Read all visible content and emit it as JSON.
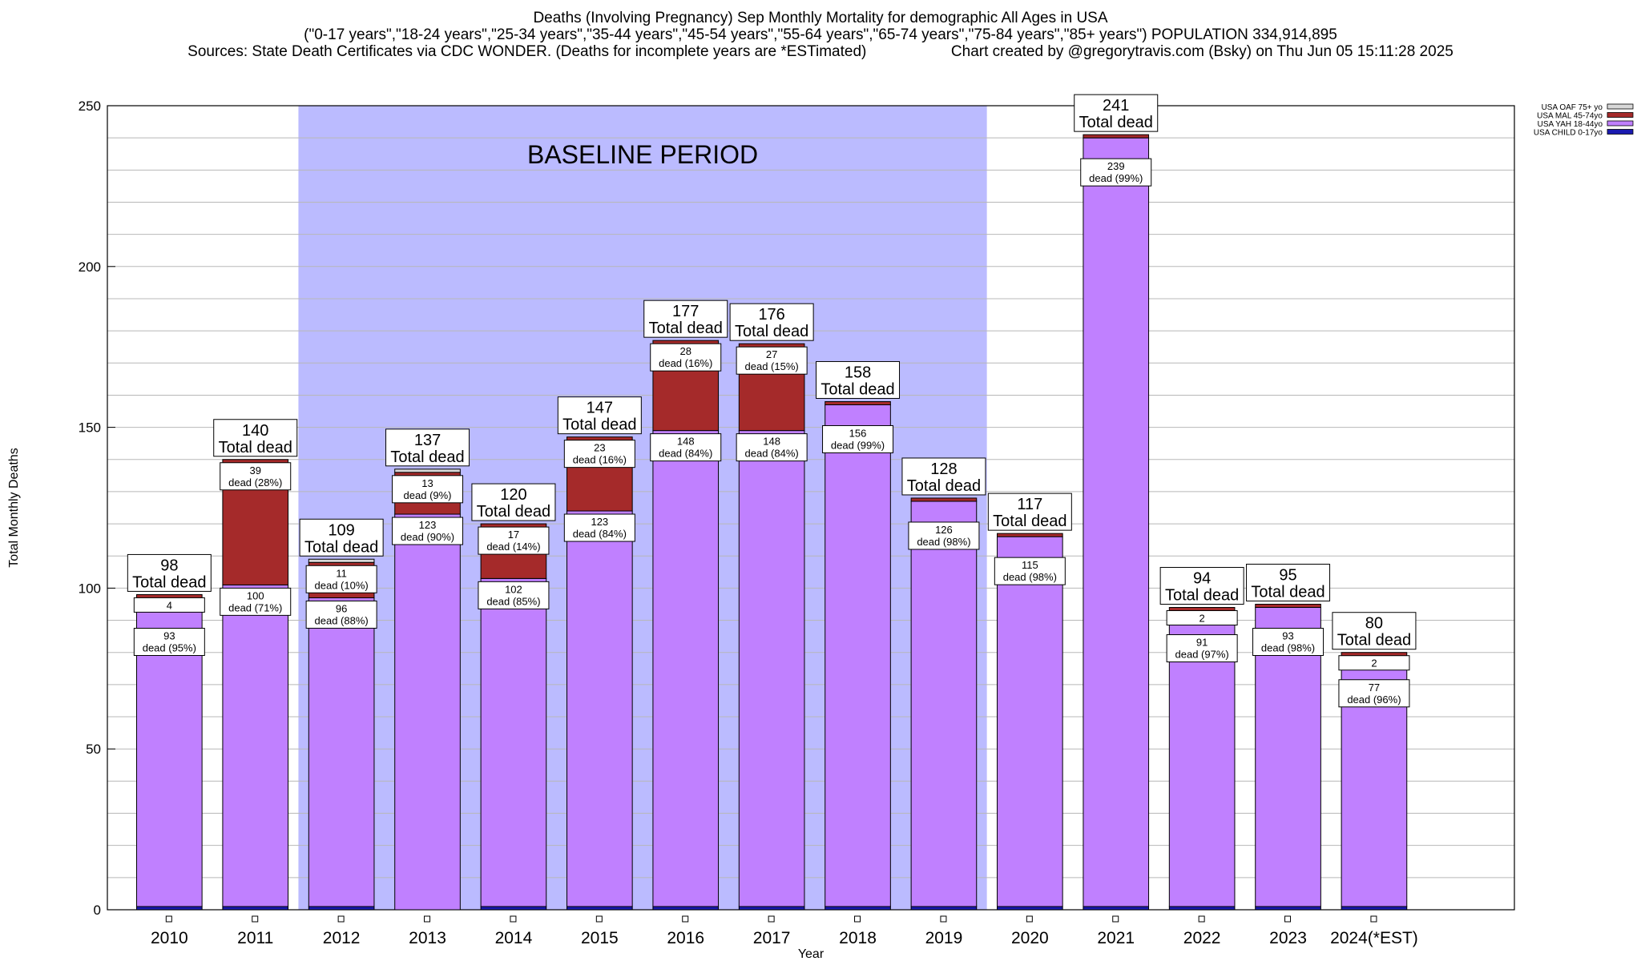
{
  "chart_data": {
    "type": "bar",
    "title": "Deaths (Involving Pregnancy) Sep Monthly Mortality for demographic All Ages in USA",
    "subtitle": "(\"0-17 years\",\"18-24 years\",\"25-34 years\",\"35-44 years\",\"45-54 years\",\"55-64 years\",\"65-74 years\",\"75-84 years\",\"85+ years\") POPULATION 334,914,895",
    "source_line": "Sources: State Death Certificates via CDC WONDER. (Deaths for incomplete years are *ESTimated)",
    "credit_line": "Chart created by @gregorytravis.com (Bsky) on Thu Jun 05 15:11:28 2025",
    "xlabel": "Year",
    "ylabel": "Total Monthly Deaths",
    "ylim": [
      0,
      250
    ],
    "yticks": [
      0,
      50,
      100,
      150,
      200,
      250
    ],
    "grid": true,
    "legend_position": "top-right",
    "baseline_label": "BASELINE PERIOD",
    "baseline_range": [
      "2012",
      "2019"
    ],
    "categories": [
      "2010",
      "2011",
      "2012",
      "2013",
      "2014",
      "2015",
      "2016",
      "2017",
      "2018",
      "2019",
      "2020",
      "2021",
      "2022",
      "2023",
      "2024(*EST)"
    ],
    "series": [
      {
        "name": "USA CHILD 0-17yo",
        "color": "#1a1ab0",
        "values": [
          1,
          1,
          1,
          0,
          1,
          1,
          1,
          1,
          1,
          1,
          1,
          1,
          1,
          1,
          1
        ]
      },
      {
        "name": "USA YAH 18-44yo",
        "color": "#c080ff",
        "values": [
          93,
          100,
          96,
          123,
          102,
          123,
          148,
          148,
          156,
          126,
          115,
          239,
          91,
          93,
          77
        ]
      },
      {
        "name": "USA MAL 45-74yo",
        "color": "#a52a2a",
        "values": [
          4,
          39,
          11,
          13,
          17,
          23,
          28,
          27,
          1,
          1,
          1,
          1,
          2,
          1,
          2
        ]
      },
      {
        "name": "USA OAF 75+ yo",
        "color": "#d8d8d8",
        "values": [
          0,
          0,
          1,
          1,
          0,
          0,
          0,
          0,
          0,
          0,
          0,
          0,
          0,
          0,
          0
        ]
      }
    ],
    "totals": [
      98,
      140,
      109,
      137,
      120,
      147,
      177,
      176,
      158,
      128,
      117,
      241,
      94,
      95,
      80
    ],
    "total_label": "Total dead",
    "dead_word": "dead",
    "segment_labels": [
      [
        {
          "series": 1,
          "n": "93",
          "pct": "(95%)"
        },
        {
          "series": 2,
          "n": "4",
          "pct": ""
        }
      ],
      [
        {
          "series": 1,
          "n": "100",
          "pct": "(71%)"
        },
        {
          "series": 2,
          "n": "39",
          "pct": "(28%)"
        }
      ],
      [
        {
          "series": 1,
          "n": "96",
          "pct": "(88%)"
        },
        {
          "series": 2,
          "n": "11",
          "pct": "(10%)"
        }
      ],
      [
        {
          "series": 1,
          "n": "123",
          "pct": "(90%)"
        },
        {
          "series": 2,
          "n": "13",
          "pct": "(9%)"
        }
      ],
      [
        {
          "series": 1,
          "n": "102",
          "pct": "(85%)"
        },
        {
          "series": 2,
          "n": "17",
          "pct": "(14%)"
        }
      ],
      [
        {
          "series": 1,
          "n": "123",
          "pct": "(84%)"
        },
        {
          "series": 2,
          "n": "23",
          "pct": "(16%)"
        }
      ],
      [
        {
          "series": 1,
          "n": "148",
          "pct": "(84%)"
        },
        {
          "series": 2,
          "n": "28",
          "pct": "(16%)"
        }
      ],
      [
        {
          "series": 1,
          "n": "148",
          "pct": "(84%)"
        },
        {
          "series": 2,
          "n": "27",
          "pct": "(15%)"
        }
      ],
      [
        {
          "series": 1,
          "n": "156",
          "pct": "(99%)"
        }
      ],
      [
        {
          "series": 1,
          "n": "126",
          "pct": "(98%)"
        }
      ],
      [
        {
          "series": 1,
          "n": "115",
          "pct": "(98%)"
        }
      ],
      [
        {
          "series": 1,
          "n": "239",
          "pct": "(99%)"
        }
      ],
      [
        {
          "series": 1,
          "n": "91",
          "pct": "(97%)"
        },
        {
          "series": 2,
          "n": "2",
          "pct": ""
        }
      ],
      [
        {
          "series": 1,
          "n": "93",
          "pct": "(98%)"
        }
      ],
      [
        {
          "series": 1,
          "n": "77",
          "pct": "(96%)"
        },
        {
          "series": 2,
          "n": "2",
          "pct": ""
        }
      ]
    ]
  }
}
